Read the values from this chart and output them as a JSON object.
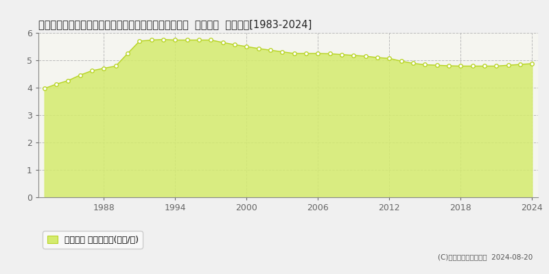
{
  "title": "栃木県下都賀郡壬生町大字安塚字西原２３８９番１１外  地価公示  地価推移[1983-2024]",
  "years": [
    1983,
    1984,
    1985,
    1986,
    1987,
    1988,
    1989,
    1990,
    1991,
    1992,
    1993,
    1994,
    1995,
    1996,
    1997,
    1998,
    1999,
    2000,
    2001,
    2002,
    2003,
    2004,
    2005,
    2006,
    2007,
    2008,
    2009,
    2010,
    2011,
    2012,
    2013,
    2014,
    2015,
    2016,
    2017,
    2018,
    2019,
    2020,
    2021,
    2022,
    2023,
    2024
  ],
  "values": [
    3.97,
    4.13,
    4.26,
    4.46,
    4.62,
    4.71,
    4.79,
    5.25,
    5.7,
    5.74,
    5.76,
    5.74,
    5.74,
    5.74,
    5.74,
    5.65,
    5.57,
    5.5,
    5.43,
    5.37,
    5.31,
    5.25,
    5.25,
    5.25,
    5.24,
    5.21,
    5.18,
    5.15,
    5.1,
    5.07,
    4.97,
    4.89,
    4.84,
    4.82,
    4.8,
    4.79,
    4.79,
    4.79,
    4.79,
    4.82,
    4.85,
    4.88
  ],
  "fill_color": "#d4eb6e",
  "fill_alpha": 0.85,
  "line_color": "#b8d426",
  "marker_face_color": "#ffffff",
  "marker_edge_color": "#b8d426",
  "bg_color": "#f0f0f0",
  "plot_bg_color": "#f5f5f0",
  "grid_color": "#bbbbbb",
  "ylim": [
    0,
    6
  ],
  "yticks": [
    0,
    1,
    2,
    3,
    4,
    5,
    6
  ],
  "xticks": [
    1988,
    1994,
    2000,
    2006,
    2012,
    2018,
    2024
  ],
  "legend_label": "地価公示 平均坪単価(万円/坪)",
  "copyright_text": "(C)土地価格ドットコム  2024-08-20",
  "title_fontsize": 10.5,
  "tick_fontsize": 9,
  "legend_fontsize": 9,
  "tick_color": "#666666",
  "spine_color": "#888888"
}
